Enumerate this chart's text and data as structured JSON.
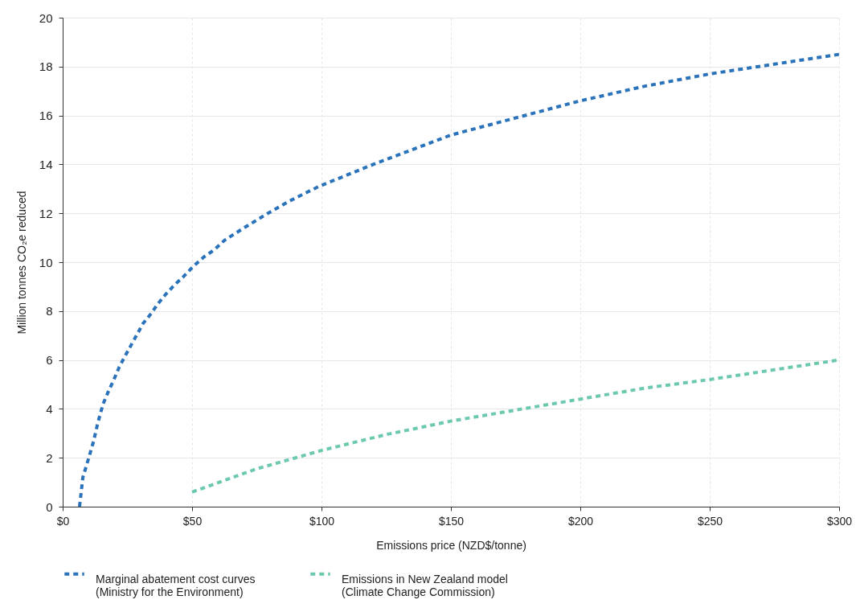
{
  "chart_data": {
    "type": "line",
    "xlabel": "Emissions price (NZD$/tonne)",
    "ylabel": "Million tonnes CO₂e reduced",
    "xlim": [
      0,
      300
    ],
    "ylim": [
      0,
      20
    ],
    "xticks": [
      {
        "value": 0,
        "label": "$0"
      },
      {
        "value": 50,
        "label": "$50"
      },
      {
        "value": 100,
        "label": "$100"
      },
      {
        "value": 150,
        "label": "$150"
      },
      {
        "value": 200,
        "label": "$200"
      },
      {
        "value": 250,
        "label": "$250"
      },
      {
        "value": 300,
        "label": "$300"
      }
    ],
    "yticks": [
      0,
      2,
      4,
      6,
      8,
      10,
      12,
      14,
      16,
      18,
      20
    ],
    "grid": true,
    "legend": "bottom",
    "line_style": "dashed",
    "marker": "none",
    "series": [
      {
        "name": "Marginal abatement cost curves\n(Ministry for the Environment)",
        "color": "#2a73bb",
        "x": [
          6.5,
          7.8,
          9.8,
          12,
          13.5,
          15.6,
          17.6,
          19.8,
          21.8,
          23.8,
          26.4,
          28.5,
          31.1,
          34.2,
          36.8,
          39.9,
          43.5,
          46.6,
          50.2,
          54.4,
          58.5,
          62.6,
          70,
          79.3,
          87.6,
          99,
          120,
          150,
          175,
          200,
          225,
          250,
          275,
          300
        ],
        "values": [
          0,
          1.2,
          1.9,
          2.7,
          3.4,
          4.2,
          4.7,
          5.2,
          5.7,
          6.1,
          6.6,
          7.0,
          7.5,
          7.9,
          8.3,
          8.7,
          9.1,
          9.4,
          9.8,
          10.2,
          10.5,
          10.9,
          11.4,
          12.0,
          12.5,
          13.1,
          14.0,
          15.2,
          15.9,
          16.6,
          17.2,
          17.7,
          18.1,
          18.5
        ]
      },
      {
        "name": "Emissions in New Zealand model\n(Climate Change Commission)",
        "color": "#6cc9b0",
        "x": [
          50,
          75,
          100,
          125,
          150,
          175,
          200,
          225,
          250,
          275,
          300
        ],
        "values": [
          0.6,
          1.55,
          2.3,
          2.95,
          3.5,
          3.95,
          4.4,
          4.85,
          5.2,
          5.6,
          6.0
        ]
      }
    ]
  }
}
